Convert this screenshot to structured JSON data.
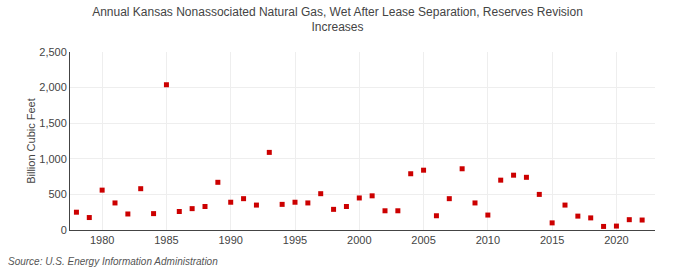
{
  "chart_data": {
    "type": "scatter",
    "title": "Annual Kansas Nonassociated Natural Gas, Wet After Lease Separation, Reserves Revision\nIncreases",
    "ylabel": "Billion Cubic Feet",
    "annotations": [
      "Source: U.S. Energy Information Administration"
    ],
    "x": [
      1978,
      1979,
      1980,
      1981,
      1982,
      1983,
      1984,
      1985,
      1986,
      1987,
      1988,
      1989,
      1990,
      1991,
      1992,
      1993,
      1994,
      1995,
      1996,
      1997,
      1998,
      1999,
      2000,
      2001,
      2002,
      2003,
      2004,
      2005,
      2006,
      2007,
      2008,
      2009,
      2010,
      2011,
      2012,
      2013,
      2014,
      2015,
      2016,
      2017,
      2018,
      2019,
      2020,
      2021,
      2022
    ],
    "values": [
      250,
      175,
      560,
      380,
      225,
      580,
      230,
      2040,
      260,
      300,
      330,
      670,
      390,
      440,
      350,
      1090,
      360,
      390,
      380,
      510,
      290,
      330,
      450,
      480,
      270,
      270,
      790,
      840,
      200,
      440,
      860,
      380,
      210,
      700,
      770,
      740,
      500,
      100,
      350,
      195,
      170,
      50,
      55,
      145,
      140
    ],
    "color": "#cc0000",
    "marker": "square",
    "xlim": [
      1977.5,
      2023
    ],
    "xticks": [
      1980,
      1985,
      1990,
      1995,
      2000,
      2005,
      2010,
      2015,
      2020
    ],
    "ylim": [
      0,
      2500
    ],
    "yticks": [
      0,
      500,
      {
        "value": 1000,
        "label": "1,000"
      },
      {
        "value": 1500,
        "label": "1,500"
      },
      {
        "value": 2000,
        "label": "2,000"
      },
      {
        "value": 2500,
        "label": "2,500"
      }
    ],
    "grid": true
  }
}
